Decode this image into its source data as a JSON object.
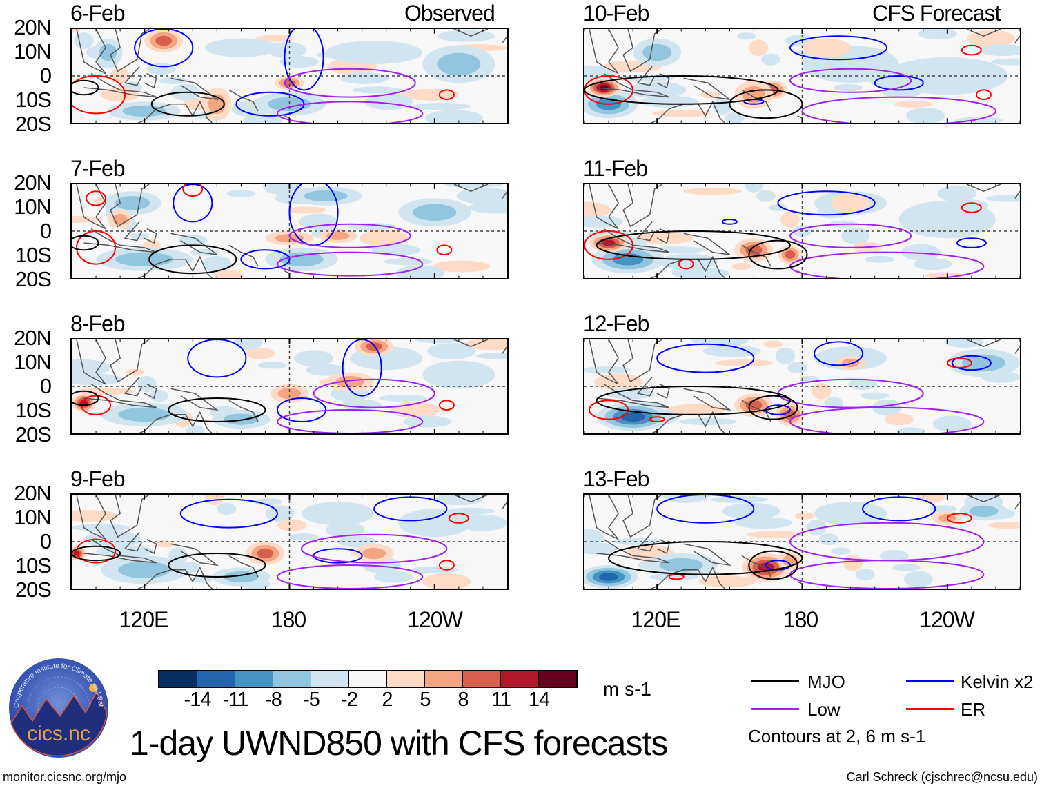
{
  "header": {
    "observed_label": "Observed",
    "forecast_label": "CFS Forecast"
  },
  "axes": {
    "y_ticks": [
      "20N",
      "10N",
      "0",
      "10S",
      "20S"
    ],
    "x_ticks": [
      "120E",
      "180",
      "120W"
    ],
    "lon_range": [
      90,
      270
    ],
    "lat_range": [
      -20,
      20
    ]
  },
  "colors": {
    "mjo": "#000000",
    "kelvin": "#0000ff",
    "low": "#a020f0",
    "er": "#ff0000",
    "coast": "#555555"
  },
  "colorbar": {
    "unit": "m s-1",
    "labels": [
      "-14",
      "-11",
      "-8",
      "-5",
      "-2",
      "2",
      "5",
      "8",
      "11",
      "14"
    ],
    "colors": [
      "#053061",
      "#2166ac",
      "#4393c3",
      "#92c5de",
      "#d1e5f0",
      "#f7f7f7",
      "#fddbc7",
      "#f4a582",
      "#d6604d",
      "#b2182b",
      "#67001f"
    ]
  },
  "legend": {
    "mjo": "MJO",
    "kelvin": "Kelvin x2",
    "low": "Low",
    "er": "ER",
    "note": "Contours at 2, 6 m s-1"
  },
  "title": "1-day UWND850 with CFS forecasts",
  "footer": {
    "left": "monitor.cicsnc.org/mjo",
    "right": "Carl Schreck (cjschrec@ncsu.edu)"
  },
  "logo": {
    "ring_text": "Cooperative Institute for Climate and Satellites",
    "name": "cics.nc"
  },
  "chart_data": {
    "type": "heatmap",
    "variable": "850-hPa zonal wind anomaly (m s-1), approximate features",
    "panels": [
      {
        "date": "6-Feb",
        "source": "Observed",
        "anomalies": [
          [
            160,
            12,
            15,
            4,
            -4
          ],
          [
            215,
            10,
            20,
            5,
            -4
          ],
          [
            250,
            5,
            15,
            8,
            -5
          ],
          [
            180,
            -12,
            15,
            5,
            -7
          ],
          [
            120,
            -15,
            15,
            4,
            -5
          ],
          [
            105,
            10,
            6,
            6,
            -6
          ],
          [
            128,
            15,
            8,
            5,
            9
          ],
          [
            180,
            -3,
            6,
            3,
            8
          ],
          [
            150,
            -12,
            6,
            7,
            6
          ],
          [
            110,
            -8,
            8,
            3,
            4
          ]
        ],
        "contours": [
          [
            "kelvin",
            128,
            12,
            12,
            8
          ],
          [
            "kelvin",
            186,
            8,
            8,
            14
          ],
          [
            "kelvin",
            172,
            -12,
            14,
            5
          ],
          [
            "low",
            205,
            -3,
            27,
            6
          ],
          [
            "low",
            205,
            -16,
            30,
            5
          ],
          [
            "er",
            100,
            -8,
            12,
            8
          ],
          [
            "er",
            245,
            -8,
            3,
            2
          ],
          [
            "mjo",
            138,
            -12,
            15,
            5
          ],
          [
            "mjo",
            95,
            -5,
            6,
            3
          ]
        ]
      },
      {
        "date": "7-Feb",
        "source": "Observed",
        "anomalies": [
          [
            115,
            12,
            12,
            5,
            -5
          ],
          [
            195,
            15,
            15,
            4,
            -5
          ],
          [
            240,
            8,
            15,
            6,
            -5
          ],
          [
            120,
            -12,
            20,
            5,
            -6
          ],
          [
            185,
            -12,
            15,
            5,
            -5
          ],
          [
            180,
            -3,
            10,
            3,
            6
          ],
          [
            200,
            -2,
            8,
            3,
            5
          ],
          [
            110,
            5,
            5,
            4,
            5
          ]
        ],
        "contours": [
          [
            "kelvin",
            140,
            12,
            8,
            8
          ],
          [
            "kelvin",
            190,
            8,
            10,
            14
          ],
          [
            "kelvin",
            170,
            -12,
            10,
            4
          ],
          [
            "low",
            205,
            -2,
            25,
            5
          ],
          [
            "low",
            205,
            -14,
            30,
            5
          ],
          [
            "er",
            100,
            -7,
            8,
            7
          ],
          [
            "er",
            100,
            14,
            4,
            3
          ],
          [
            "er",
            244,
            -8,
            3,
            2
          ],
          [
            "er",
            140,
            18,
            4,
            3
          ],
          [
            "mjo",
            140,
            -12,
            18,
            6
          ],
          [
            "mjo",
            95,
            -5,
            6,
            3
          ]
        ]
      },
      {
        "date": "8-Feb",
        "source": "Observed",
        "anomalies": [
          [
            120,
            -12,
            18,
            5,
            -6
          ],
          [
            160,
            -14,
            12,
            4,
            -5
          ],
          [
            220,
            12,
            15,
            5,
            -4
          ],
          [
            250,
            5,
            15,
            6,
            -4
          ],
          [
            95,
            -7,
            5,
            4,
            12
          ],
          [
            180,
            -3,
            8,
            4,
            7
          ],
          [
            215,
            17,
            8,
            4,
            10
          ],
          [
            205,
            2,
            10,
            4,
            5
          ]
        ],
        "contours": [
          [
            "kelvin",
            150,
            12,
            12,
            8
          ],
          [
            "kelvin",
            210,
            8,
            8,
            12
          ],
          [
            "kelvin",
            185,
            -10,
            10,
            5
          ],
          [
            "low",
            215,
            -3,
            25,
            6
          ],
          [
            "low",
            205,
            -15,
            30,
            5
          ],
          [
            "er",
            245,
            -8,
            3,
            2
          ],
          [
            "er",
            100,
            -8,
            6,
            4
          ],
          [
            "mjo",
            95,
            -5,
            6,
            3
          ],
          [
            "mjo",
            150,
            -10,
            20,
            5
          ]
        ]
      },
      {
        "date": "9-Feb",
        "source": "Observed",
        "anomalies": [
          [
            120,
            -12,
            18,
            6,
            -7
          ],
          [
            160,
            -15,
            12,
            4,
            -5
          ],
          [
            200,
            12,
            15,
            5,
            -4
          ],
          [
            240,
            8,
            15,
            6,
            -4
          ],
          [
            92,
            -5,
            4,
            3,
            13
          ],
          [
            170,
            -5,
            8,
            5,
            9
          ],
          [
            215,
            -5,
            8,
            4,
            5
          ]
        ],
        "contours": [
          [
            "kelvin",
            155,
            12,
            20,
            6
          ],
          [
            "kelvin",
            230,
            14,
            15,
            5
          ],
          [
            "kelvin",
            200,
            -6,
            10,
            3
          ],
          [
            "low",
            215,
            -3,
            30,
            6
          ],
          [
            "low",
            205,
            -15,
            30,
            5
          ],
          [
            "er",
            245,
            -10,
            3,
            2
          ],
          [
            "er",
            100,
            -4,
            8,
            5
          ],
          [
            "er",
            250,
            10,
            4,
            2
          ],
          [
            "mjo",
            100,
            -5,
            10,
            3
          ],
          [
            "mjo",
            150,
            -10,
            20,
            5
          ]
        ]
      },
      {
        "date": "10-Feb",
        "source": "CFS Forecast",
        "anomalies": [
          [
            100,
            -12,
            12,
            6,
            -8
          ],
          [
            120,
            10,
            10,
            6,
            -5
          ],
          [
            200,
            5,
            20,
            8,
            -4
          ],
          [
            240,
            0,
            25,
            8,
            -3
          ],
          [
            98,
            -5,
            7,
            4,
            16
          ],
          [
            168,
            -6,
            6,
            4,
            10
          ],
          [
            160,
            -8,
            8,
            6,
            6
          ],
          [
            190,
            12,
            10,
            4,
            4
          ]
        ],
        "contours": [
          [
            "kelvin",
            195,
            12,
            20,
            5
          ],
          [
            "kelvin",
            220,
            -3,
            10,
            3
          ],
          [
            "kelvin",
            160,
            -11,
            4,
            1
          ],
          [
            "low",
            200,
            -2,
            25,
            5
          ],
          [
            "low",
            220,
            -15,
            40,
            6
          ],
          [
            "er",
            100,
            -6,
            10,
            6
          ],
          [
            "er",
            250,
            11,
            4,
            2
          ],
          [
            "er",
            255,
            -8,
            3,
            2
          ],
          [
            "mjo",
            130,
            -6,
            40,
            6
          ],
          [
            "mjo",
            165,
            -12,
            15,
            6
          ]
        ]
      },
      {
        "date": "11-Feb",
        "source": "CFS Forecast",
        "anomalies": [
          [
            108,
            -12,
            15,
            6,
            -10
          ],
          [
            200,
            12,
            15,
            5,
            -4
          ],
          [
            240,
            5,
            20,
            8,
            -4
          ],
          [
            100,
            -5,
            8,
            4,
            12
          ],
          [
            160,
            -8,
            8,
            5,
            10
          ],
          [
            175,
            -10,
            5,
            4,
            10
          ],
          [
            200,
            12,
            8,
            4,
            4
          ]
        ],
        "contours": [
          [
            "kelvin",
            190,
            12,
            20,
            5
          ],
          [
            "kelvin",
            250,
            -5,
            6,
            2
          ],
          [
            "kelvin",
            150,
            4,
            3,
            1
          ],
          [
            "low",
            200,
            -2,
            25,
            5
          ],
          [
            "low",
            215,
            -15,
            40,
            6
          ],
          [
            "er",
            100,
            -6,
            10,
            6
          ],
          [
            "er",
            250,
            10,
            4,
            2
          ],
          [
            "er",
            132,
            -14,
            3,
            2
          ],
          [
            "mjo",
            135,
            -6,
            40,
            6
          ],
          [
            "mjo",
            170,
            -10,
            12,
            6
          ]
        ]
      },
      {
        "date": "12-Feb",
        "source": "CFS Forecast",
        "anomalies": [
          [
            110,
            -13,
            15,
            6,
            -11
          ],
          [
            200,
            12,
            15,
            5,
            -4
          ],
          [
            255,
            10,
            15,
            6,
            -5
          ],
          [
            160,
            -8,
            8,
            5,
            9
          ],
          [
            175,
            -12,
            6,
            5,
            8
          ],
          [
            200,
            10,
            6,
            3,
            5
          ]
        ],
        "contours": [
          [
            "kelvin",
            140,
            12,
            20,
            6
          ],
          [
            "kelvin",
            195,
            14,
            10,
            5
          ],
          [
            "kelvin",
            250,
            10,
            8,
            3
          ],
          [
            "kelvin",
            170,
            -10,
            5,
            2
          ],
          [
            "low",
            200,
            -3,
            30,
            6
          ],
          [
            "low",
            215,
            -15,
            40,
            6
          ],
          [
            "er",
            120,
            -14,
            3,
            1
          ],
          [
            "er",
            245,
            10,
            5,
            2
          ],
          [
            "er",
            100,
            -10,
            8,
            4
          ],
          [
            "mjo",
            135,
            -6,
            40,
            6
          ],
          [
            "mjo",
            168,
            -9,
            10,
            5
          ]
        ]
      },
      {
        "date": "13-Feb",
        "source": "CFS Forecast",
        "anomalies": [
          [
            100,
            -15,
            12,
            5,
            -11
          ],
          [
            130,
            -10,
            15,
            5,
            -6
          ],
          [
            200,
            12,
            15,
            5,
            -4
          ],
          [
            255,
            13,
            10,
            4,
            -7
          ],
          [
            165,
            -11,
            10,
            6,
            11
          ],
          [
            175,
            -8,
            5,
            4,
            7
          ],
          [
            240,
            10,
            6,
            3,
            5
          ]
        ],
        "contours": [
          [
            "kelvin",
            140,
            14,
            20,
            6
          ],
          [
            "kelvin",
            220,
            14,
            15,
            5
          ],
          [
            "kelvin",
            170,
            -10,
            5,
            2
          ],
          [
            "low",
            215,
            0,
            40,
            8
          ],
          [
            "low",
            215,
            -14,
            40,
            6
          ],
          [
            "er",
            245,
            10,
            5,
            2
          ],
          [
            "er",
            128,
            -15,
            3,
            1
          ],
          [
            "mjo",
            140,
            -7,
            40,
            7
          ],
          [
            "mjo",
            168,
            -10,
            10,
            6
          ]
        ]
      }
    ]
  }
}
